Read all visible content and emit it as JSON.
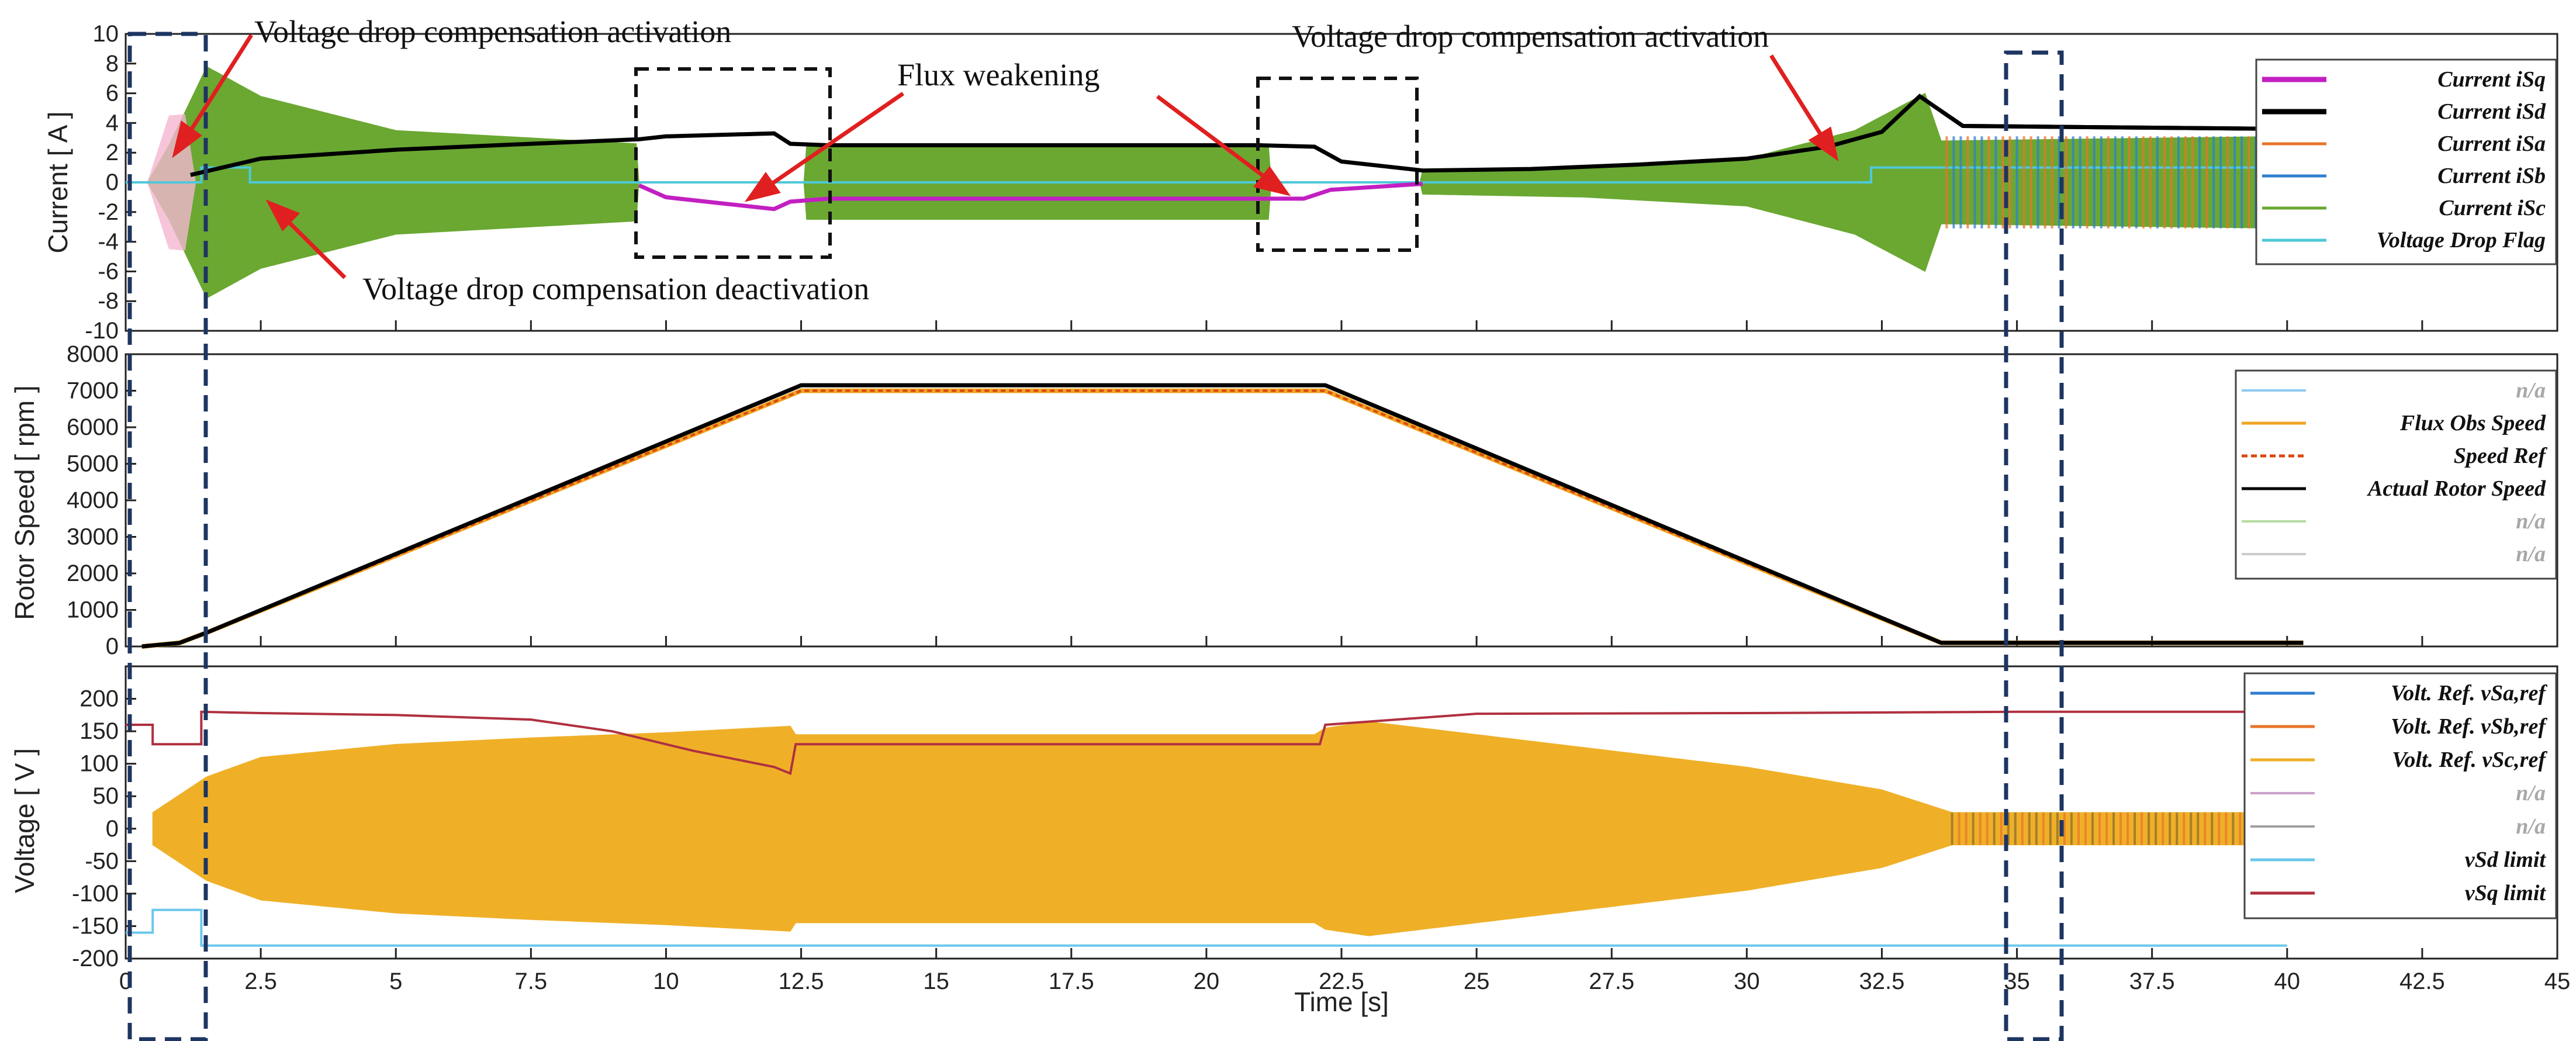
{
  "figure": {
    "xlabel": "Time [s]"
  },
  "chart_data": [
    {
      "type": "line",
      "panel": "current",
      "ylabel": "Current [ A ]",
      "xlim": [
        0,
        45
      ],
      "ylim": [
        -10,
        10
      ],
      "yticks": [
        "10",
        "8",
        "6",
        "4",
        "2",
        "0",
        "-2",
        "-4",
        "-6",
        "-8",
        "-10"
      ],
      "legend_position": "right",
      "series": [
        {
          "name": "Current iSq",
          "color": "#c21fc2",
          "muted": false
        },
        {
          "name": "Current iSd",
          "color": "#000000",
          "muted": false
        },
        {
          "name": "Current iSa",
          "color": "#e8742a",
          "muted": false
        },
        {
          "name": "Current iSb",
          "color": "#2f7fcf",
          "muted": false
        },
        {
          "name": "Current iSc",
          "color": "#6aa832",
          "muted": false
        },
        {
          "name": "Voltage Drop Flag",
          "color": "#4fc8d8",
          "muted": false
        }
      ],
      "iSd_points": [
        [
          1.2,
          0.5
        ],
        [
          2.5,
          1.6
        ],
        [
          5,
          2.2
        ],
        [
          7.5,
          2.6
        ],
        [
          9.5,
          2.9
        ],
        [
          10,
          3.1
        ],
        [
          12,
          3.3
        ],
        [
          12.3,
          2.6
        ],
        [
          13,
          2.5
        ],
        [
          21,
          2.5
        ],
        [
          22,
          2.4
        ],
        [
          22.5,
          1.4
        ],
        [
          24,
          0.8
        ],
        [
          26,
          0.9
        ],
        [
          28,
          1.2
        ],
        [
          30,
          1.6
        ],
        [
          31.5,
          2.4
        ],
        [
          32.5,
          3.4
        ],
        [
          33.2,
          5.8
        ],
        [
          33.6,
          4.8
        ],
        [
          34,
          3.8
        ],
        [
          40,
          3.6
        ]
      ],
      "iSq_points": [
        [
          9.5,
          -0.2
        ],
        [
          10,
          -1.0
        ],
        [
          11,
          -1.4
        ],
        [
          12,
          -1.8
        ],
        [
          12.3,
          -1.3
        ],
        [
          13,
          -1.1
        ],
        [
          21.2,
          -1.1
        ],
        [
          21.8,
          -1.1
        ],
        [
          22.3,
          -0.5
        ],
        [
          24,
          -0.1
        ]
      ],
      "flag_points": [
        [
          0,
          0
        ],
        [
          1.4,
          0
        ],
        [
          1.4,
          1
        ],
        [
          2.3,
          1
        ],
        [
          2.3,
          0
        ],
        [
          32.3,
          0
        ],
        [
          32.3,
          1
        ],
        [
          40,
          1
        ]
      ],
      "iSc_envelope": [
        [
          0.4,
          0
        ],
        [
          0.8,
          2.5
        ],
        [
          1.5,
          7.8
        ],
        [
          2.5,
          5.8
        ],
        [
          5,
          3.5
        ],
        [
          7.5,
          3.0
        ],
        [
          9.5,
          2.6
        ],
        [
          9.5,
          0
        ],
        [
          12.6,
          0
        ],
        [
          12.6,
          2.5
        ],
        [
          21.2,
          2.5
        ],
        [
          21.2,
          0
        ],
        [
          24,
          0
        ],
        [
          24,
          0.8
        ],
        [
          27,
          1.0
        ],
        [
          30,
          1.6
        ],
        [
          32,
          3.5
        ],
        [
          33.3,
          6.0
        ],
        [
          33.6,
          2.8
        ],
        [
          40,
          3.1
        ]
      ],
      "annotations": [
        {
          "text": "Voltage drop compensation activation",
          "position": "top-left"
        },
        {
          "text": "Voltage drop compensation deactivation",
          "position": "lower-left"
        },
        {
          "text": "Flux weakening",
          "position": "top-center"
        },
        {
          "text": "Voltage drop compensation activation",
          "position": "top-right"
        }
      ]
    },
    {
      "type": "line",
      "panel": "speed",
      "ylabel": "Rotor Speed [ rpm ]",
      "xlim": [
        0,
        45
      ],
      "ylim": [
        0,
        8000
      ],
      "yticks": [
        "8000",
        "7000",
        "6000",
        "5000",
        "4000",
        "3000",
        "2000",
        "1000",
        "0"
      ],
      "legend_position": "right",
      "series": [
        {
          "name": "n/a",
          "color": "#8ec9ef",
          "muted": true
        },
        {
          "name": "Flux Obs Speed",
          "color": "#f0a422",
          "muted": false
        },
        {
          "name": "Speed Ref",
          "color": "#d9480f",
          "muted": false
        },
        {
          "name": "Actual Rotor Speed",
          "color": "#000000",
          "muted": false
        },
        {
          "name": "n/a",
          "color": "#b6dca0",
          "muted": true
        },
        {
          "name": "n/a",
          "color": "#cccccc",
          "muted": true
        }
      ],
      "actual_speed": [
        [
          0.3,
          0
        ],
        [
          1.0,
          100
        ],
        [
          1.5,
          380
        ],
        [
          12.5,
          7150
        ],
        [
          22.2,
          7150
        ],
        [
          33.6,
          100
        ],
        [
          40.3,
          100
        ]
      ],
      "speed_ref": [
        [
          0.3,
          0
        ],
        [
          1.0,
          100
        ],
        [
          1.5,
          380
        ],
        [
          12.5,
          7000
        ],
        [
          22.2,
          7000
        ],
        [
          33.6,
          100
        ],
        [
          40.3,
          100
        ]
      ]
    },
    {
      "type": "line",
      "panel": "voltage",
      "ylabel": "Voltage [ V ]",
      "xlim": [
        0,
        45
      ],
      "ylim": [
        -200,
        250
      ],
      "yticks": [
        "200",
        "150",
        "100",
        "50",
        "0",
        "-50",
        "-100",
        "-150",
        "-200"
      ],
      "xticks": [
        "0",
        "2.5",
        "5",
        "7.5",
        "10",
        "12.5",
        "15",
        "17.5",
        "20",
        "22.5",
        "25",
        "27.5",
        "30",
        "32.5",
        "35",
        "37.5",
        "40",
        "42.5",
        "45"
      ],
      "legend_position": "right",
      "series": [
        {
          "name": "Volt. Ref. vSa,ref",
          "color": "#2f7fcf",
          "muted": false
        },
        {
          "name": "Volt. Ref. vSb,ref",
          "color": "#e8742a",
          "muted": false
        },
        {
          "name": "Volt. Ref. vSc,ref",
          "color": "#efb028",
          "muted": false
        },
        {
          "name": "n/a",
          "color": "#c9a0c9",
          "muted": true
        },
        {
          "name": "n/a",
          "color": "#a0a0a0",
          "muted": true
        },
        {
          "name": "vSd limit",
          "color": "#6cc8ec",
          "muted": false
        },
        {
          "name": "vSq limit",
          "color": "#b03040",
          "muted": false
        }
      ],
      "vSq_limit": [
        [
          0,
          160
        ],
        [
          0.5,
          160
        ],
        [
          0.5,
          130
        ],
        [
          1.4,
          130
        ],
        [
          1.4,
          180
        ],
        [
          2.5,
          178
        ],
        [
          5,
          175
        ],
        [
          7.5,
          168
        ],
        [
          9,
          150
        ],
        [
          10.5,
          120
        ],
        [
          12,
          95
        ],
        [
          12.3,
          85
        ],
        [
          12.4,
          130
        ],
        [
          15,
          130
        ],
        [
          20,
          130
        ],
        [
          22.1,
          130
        ],
        [
          22.2,
          160
        ],
        [
          25,
          177
        ],
        [
          30,
          178
        ],
        [
          35,
          180
        ],
        [
          40,
          180
        ]
      ],
      "vSd_limit": [
        [
          0,
          -160
        ],
        [
          0.5,
          -160
        ],
        [
          0.5,
          -125
        ],
        [
          1.4,
          -125
        ],
        [
          1.4,
          -180
        ],
        [
          40,
          -180
        ]
      ],
      "vS_envelope": [
        [
          0.5,
          25
        ],
        [
          1.5,
          80
        ],
        [
          2.5,
          110
        ],
        [
          5,
          130
        ],
        [
          7.5,
          140
        ],
        [
          10,
          148
        ],
        [
          12.3,
          158
        ],
        [
          12.4,
          145
        ],
        [
          22,
          145
        ],
        [
          22.2,
          155
        ],
        [
          23,
          165
        ],
        [
          25,
          145
        ],
        [
          27.5,
          120
        ],
        [
          30,
          95
        ],
        [
          32.5,
          60
        ],
        [
          33.8,
          25
        ],
        [
          40,
          25
        ]
      ]
    }
  ]
}
